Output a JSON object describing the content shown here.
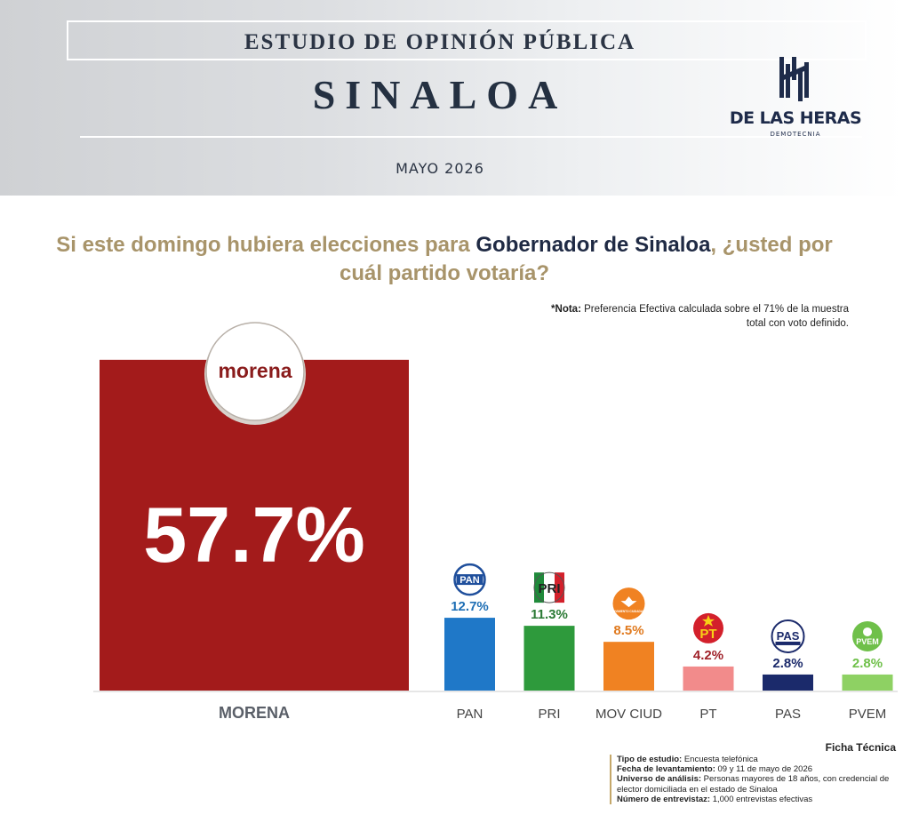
{
  "header": {
    "supertitle": "ESTUDIO DE OPINIÓN PÚBLICA",
    "title": "SINALOA",
    "date": "MAYO 2026",
    "logo_name": "DE LAS HERAS",
    "logo_sub": "DEMOTECNIA"
  },
  "question": {
    "part1": "Si este domingo hubiera elecciones para ",
    "emphasis": "Gobernador de Sinaloa",
    "part2": ", ¿usted por cuál partido votaría?"
  },
  "note": {
    "label": "*Nota:",
    "text": " Preferencia Efectiva calculada sobre el 71% de la muestra total con voto definido."
  },
  "chart_data": {
    "type": "bar",
    "categories": [
      "MORENA",
      "PAN",
      "PRI",
      "MOV CIUD",
      "PT",
      "PAS",
      "PVEM"
    ],
    "values": [
      57.7,
      12.7,
      11.3,
      8.5,
      4.2,
      2.8,
      2.8
    ],
    "value_labels": [
      "57.7%",
      "12.7%",
      "11.3%",
      "8.5%",
      "4.2%",
      "2.8%",
      "2.8%"
    ],
    "colors": [
      "#a31b1b",
      "#1f78c8",
      "#2e9a3c",
      "#f08222",
      "#f28b8b",
      "#1b2a6b",
      "#8ed163"
    ],
    "label_colors": [
      "#ffffff",
      "#1f6fb5",
      "#2b7a35",
      "#e07a1f",
      "#a0222a",
      "#1b2a6b",
      "#6fc04a"
    ],
    "logos": [
      "morena",
      "PAN",
      "PRI",
      "MOVIMIENTO CIUDADANO",
      "PT",
      "PAS",
      "PVEM"
    ],
    "logo_icons": [
      "morena-logo-icon",
      "pan-logo-icon",
      "pri-logo-icon",
      "movimiento-ciudadano-logo-icon",
      "pt-logo-icon",
      "pas-logo-icon",
      "pvem-logo-icon"
    ],
    "title": "",
    "xlabel": "",
    "ylabel": "",
    "unit": "%",
    "grid": false
  },
  "ficha": {
    "title": "Ficha Técnica",
    "rows": [
      {
        "label": "Tipo de estudio:",
        "value": " Encuesta telefónica"
      },
      {
        "label": "Fecha de levantamiento:",
        "value": " 09 y 11 de mayo de 2026"
      },
      {
        "label": "Universo de análisis:",
        "value": " Personas mayores de 18 años, con credencial de elector domiciliada en el estado de Sinaloa"
      },
      {
        "label": "Número de entrevistaz:",
        "value": " 1,000 entrevistas efectivas"
      }
    ]
  }
}
